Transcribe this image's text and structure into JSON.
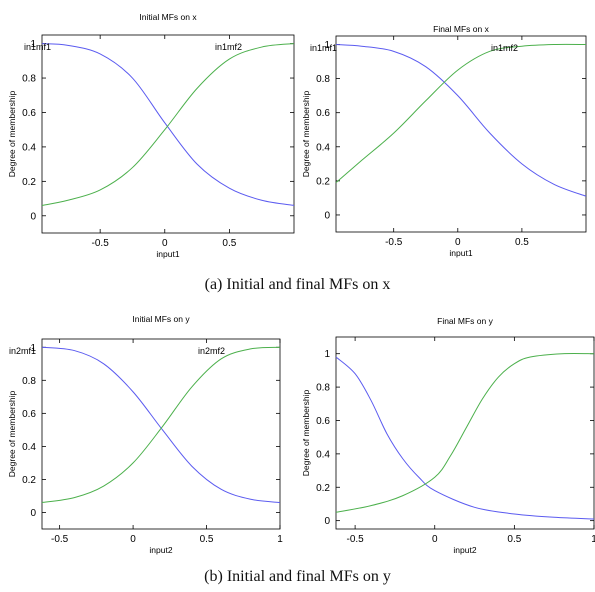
{
  "figure": {
    "caption_a": "(a) Initial and final MFs on x",
    "caption_b": "(b) Initial and final MFs on y"
  },
  "colors": {
    "mf1": "#5b5bf0",
    "mf2": "#4cb04c",
    "axis": "#000000"
  },
  "chart_data": [
    {
      "type": "line",
      "title": "Initial MFs on x",
      "xlabel": "input1",
      "ylabel": "Degree of membership",
      "xlim": [
        -0.95,
        1.0
      ],
      "ylim": [
        -0.1,
        1.05
      ],
      "xticks": [
        -0.5,
        0,
        0.5
      ],
      "yticks": [
        0,
        0.2,
        0.4,
        0.6,
        0.8,
        1
      ],
      "grid": false,
      "series": [
        {
          "name": "in1mf1",
          "x": [
            -0.95,
            -0.75,
            -0.5,
            -0.25,
            0,
            0.25,
            0.5,
            0.75,
            1.0
          ],
          "values": [
            1.0,
            0.99,
            0.94,
            0.8,
            0.54,
            0.3,
            0.16,
            0.09,
            0.06
          ]
        },
        {
          "name": "in1mf2",
          "x": [
            -0.95,
            -0.75,
            -0.5,
            -0.25,
            0,
            0.25,
            0.5,
            0.75,
            1.0
          ],
          "values": [
            0.06,
            0.09,
            0.15,
            0.28,
            0.5,
            0.74,
            0.91,
            0.98,
            1.0
          ]
        }
      ]
    },
    {
      "type": "line",
      "title": "Final MFs on x",
      "xlabel": "input1",
      "ylabel": "Degree of membership",
      "xlim": [
        -0.95,
        1.0
      ],
      "ylim": [
        -0.1,
        1.05
      ],
      "xticks": [
        -0.5,
        0,
        0.5
      ],
      "yticks": [
        0,
        0.2,
        0.4,
        0.6,
        0.8,
        1
      ],
      "grid": false,
      "series": [
        {
          "name": "in1mf1",
          "x": [
            -0.95,
            -0.75,
            -0.5,
            -0.25,
            0,
            0.25,
            0.5,
            0.75,
            1.0
          ],
          "values": [
            1.0,
            0.99,
            0.96,
            0.87,
            0.7,
            0.48,
            0.3,
            0.18,
            0.11
          ]
        },
        {
          "name": "in1mf2",
          "x": [
            -0.95,
            -0.75,
            -0.5,
            -0.25,
            0,
            0.25,
            0.5,
            0.75,
            1.0
          ],
          "values": [
            0.19,
            0.32,
            0.48,
            0.67,
            0.85,
            0.96,
            0.99,
            1.0,
            1.0
          ]
        }
      ]
    },
    {
      "type": "line",
      "title": "Initial MFs on y",
      "xlabel": "input2",
      "ylabel": "Degree of membership",
      "xlim": [
        -0.62,
        1.0
      ],
      "ylim": [
        -0.1,
        1.05
      ],
      "xticks": [
        -0.5,
        0,
        0.5,
        1
      ],
      "yticks": [
        0,
        0.2,
        0.4,
        0.6,
        0.8,
        1
      ],
      "grid": false,
      "series": [
        {
          "name": "in2mf1",
          "x": [
            -0.62,
            -0.4,
            -0.2,
            0,
            0.2,
            0.4,
            0.6,
            0.8,
            1.0
          ],
          "values": [
            1.0,
            0.98,
            0.9,
            0.73,
            0.5,
            0.28,
            0.14,
            0.08,
            0.06
          ]
        },
        {
          "name": "in2mf2",
          "x": [
            -0.62,
            -0.4,
            -0.2,
            0,
            0.2,
            0.4,
            0.6,
            0.8,
            1.0
          ],
          "values": [
            0.06,
            0.09,
            0.16,
            0.3,
            0.52,
            0.76,
            0.93,
            0.99,
            1.0
          ]
        }
      ]
    },
    {
      "type": "line",
      "title": "Final MFs on y",
      "xlabel": "input2",
      "ylabel": "Degree of membership",
      "xlim": [
        -0.62,
        1.0
      ],
      "ylim": [
        -0.05,
        1.1
      ],
      "xticks": [
        -0.5,
        0,
        0.5,
        1
      ],
      "yticks": [
        0,
        0.2,
        0.4,
        0.6,
        0.8,
        1
      ],
      "grid": false,
      "series": [
        {
          "name": "",
          "x": [
            -0.62,
            -0.5,
            -0.4,
            -0.3,
            -0.2,
            -0.1,
            0,
            0.25,
            0.5,
            0.75,
            1.0
          ],
          "values": [
            0.98,
            0.88,
            0.72,
            0.52,
            0.37,
            0.26,
            0.18,
            0.08,
            0.04,
            0.02,
            0.01
          ]
        },
        {
          "name": "",
          "x": [
            -0.62,
            -0.4,
            -0.2,
            0,
            0.1,
            0.2,
            0.3,
            0.4,
            0.5,
            0.6,
            0.8,
            1.0
          ],
          "values": [
            0.05,
            0.09,
            0.15,
            0.26,
            0.39,
            0.56,
            0.73,
            0.86,
            0.94,
            0.98,
            1.0,
            1.0
          ]
        }
      ]
    }
  ]
}
